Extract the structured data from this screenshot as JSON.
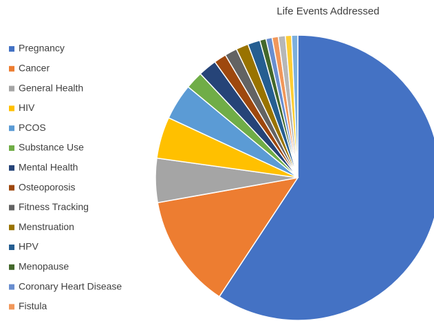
{
  "chart_data": {
    "type": "pie",
    "title": "Life Events Addressed",
    "categories": [
      "Pregnancy",
      "Cancer",
      "General Health",
      "HIV",
      "PCOS",
      "Substance Use",
      "Mental Health",
      "Osteoporosis",
      "Fitness Tracking",
      "Menstruation",
      "HPV",
      "Menopause",
      "Coronary Heart Disease",
      "Fistula",
      null,
      null,
      null
    ],
    "values": [
      59.3,
      12.9,
      5,
      4.7,
      4.1,
      2,
      2.1,
      1.4,
      1.4,
      1.4,
      1.4,
      0.7,
      0.7,
      0.7,
      0.8,
      0.7,
      0.7
    ],
    "colors": [
      "#4472c4",
      "#ed7d31",
      "#a5a5a5",
      "#ffc000",
      "#5b9bd5",
      "#70ad47",
      "#264478",
      "#9e480e",
      "#636363",
      "#997300",
      "#255e91",
      "#43682b",
      "#698ed0",
      "#f1975a",
      "#b7b7b7",
      "#ffcd33",
      "#7cafdd"
    ],
    "legend": "left"
  }
}
